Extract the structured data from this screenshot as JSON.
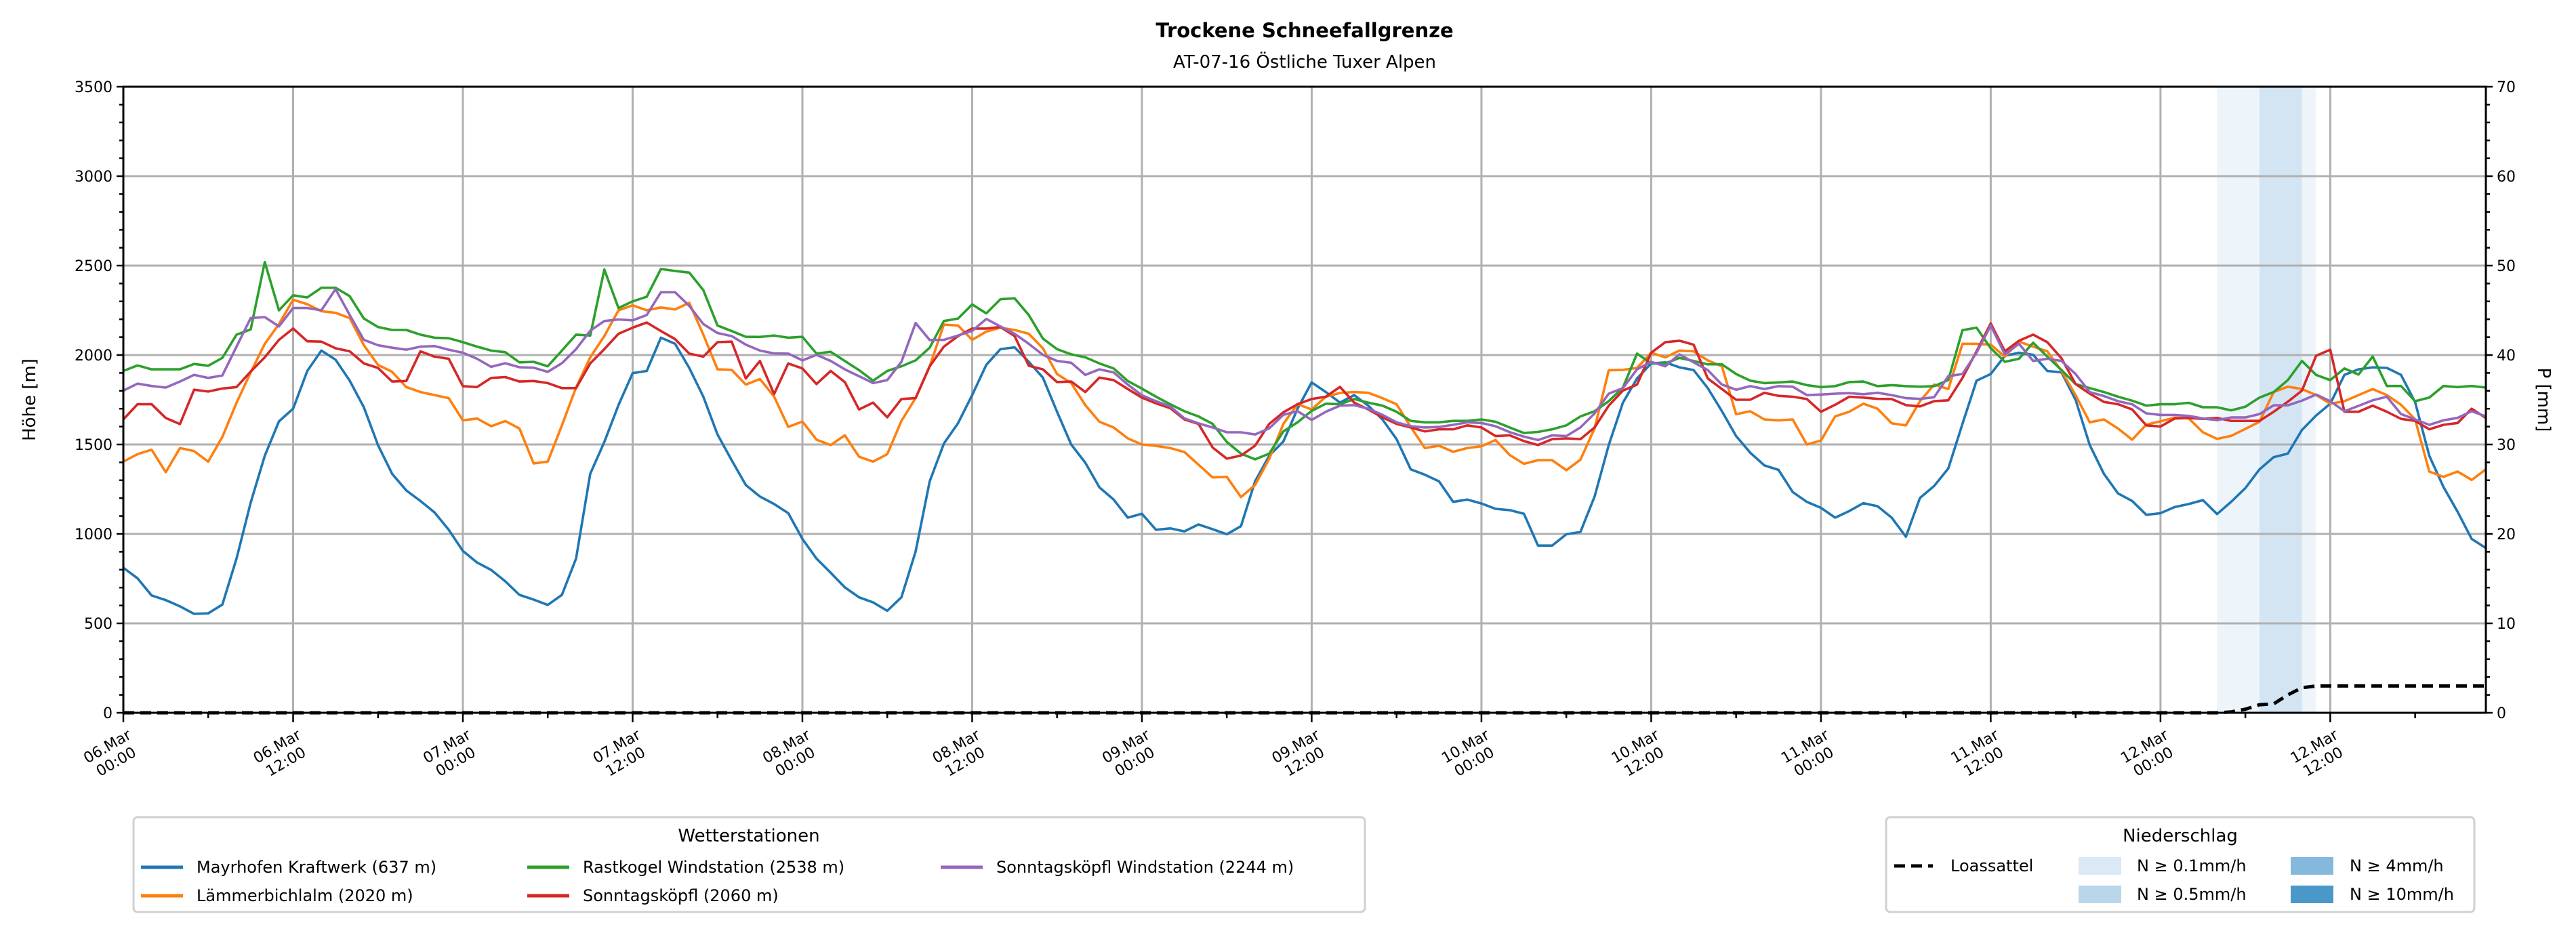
{
  "chart_data": {
    "type": "line",
    "title": "Trockene Schneefallgrenze",
    "subtitle": "AT-07-16 Östliche Tuxer Alpen",
    "ylabel": "Höhe [m]",
    "y2label": "P [mm]",
    "ylim": [
      0,
      3500
    ],
    "y2lim": [
      0,
      70
    ],
    "xlim_hours": [
      0,
      167
    ],
    "x_unit": "hours since 06.Mar 00:00 (hourly values)",
    "grid": true,
    "yticks": [
      0,
      500,
      1000,
      1500,
      2000,
      2500,
      3000,
      3500
    ],
    "y2ticks": [
      0,
      10,
      20,
      30,
      40,
      50,
      60,
      70
    ],
    "xticks": [
      {
        "h": 0,
        "l1": "06.Mar",
        "l2": "00:00"
      },
      {
        "h": 12,
        "l1": "06.Mar",
        "l2": "12:00"
      },
      {
        "h": 24,
        "l1": "07.Mar",
        "l2": "00:00"
      },
      {
        "h": 36,
        "l1": "07.Mar",
        "l2": "12:00"
      },
      {
        "h": 48,
        "l1": "08.Mar",
        "l2": "00:00"
      },
      {
        "h": 60,
        "l1": "08.Mar",
        "l2": "12:00"
      },
      {
        "h": 72,
        "l1": "09.Mar",
        "l2": "00:00"
      },
      {
        "h": 84,
        "l1": "09.Mar",
        "l2": "12:00"
      },
      {
        "h": 96,
        "l1": "10.Mar",
        "l2": "00:00"
      },
      {
        "h": 108,
        "l1": "10.Mar",
        "l2": "12:00"
      },
      {
        "h": 120,
        "l1": "11.Mar",
        "l2": "00:00"
      },
      {
        "h": 132,
        "l1": "11.Mar",
        "l2": "12:00"
      },
      {
        "h": 144,
        "l1": "12.Mar",
        "l2": "00:00"
      },
      {
        "h": 156,
        "l1": "12.Mar",
        "l2": "12:00"
      }
    ],
    "legend_stations_title": "Wetterstationen",
    "legend_stations_placement": "bottom-left",
    "legend_precip_title": "Niederschlag",
    "legend_precip_placement": "bottom-right",
    "series": [
      {
        "name": "Mayrhofen Kraftwerk (637 m)",
        "color": "#1f77b4",
        "values": [
          811,
          752,
          656,
          630,
          595,
          553,
          556,
          605,
          862,
          1175,
          1437,
          1629,
          1700,
          1911,
          2025,
          1974,
          1857,
          1708,
          1497,
          1336,
          1243,
          1184,
          1120,
          1023,
          905,
          840,
          799,
          735,
          659,
          633,
          603,
          659,
          862,
          1336,
          1514,
          1720,
          1899,
          1911,
          2097,
          2063,
          1928,
          1767,
          1556,
          1412,
          1273,
          1209,
          1167,
          1116,
          972,
          862,
          783,
          701,
          646,
          617,
          570,
          646,
          901,
          1294,
          1505,
          1619,
          1776,
          1945,
          2033,
          2043,
          1962,
          1874,
          1683,
          1500,
          1398,
          1260,
          1192,
          1091,
          1113,
          1023,
          1031,
          1014,
          1053,
          1026,
          998,
          1043,
          1294,
          1437,
          1517,
          1700,
          1847,
          1793,
          1734,
          1776,
          1717,
          1640,
          1530,
          1361,
          1331,
          1294,
          1179,
          1192,
          1170,
          1140,
          1133,
          1113,
          935,
          935,
          998,
          1011,
          1209,
          1497,
          1734,
          1869,
          1953,
          1959,
          1931,
          1916,
          1815,
          1686,
          1547,
          1454,
          1383,
          1358,
          1234,
          1179,
          1146,
          1091,
          1128,
          1172,
          1155,
          1091,
          984,
          1201,
          1268,
          1366,
          1615,
          1857,
          1894,
          1996,
          2013,
          2001,
          1911,
          1903,
          1750,
          1497,
          1336,
          1226,
          1184,
          1107,
          1116,
          1150,
          1167,
          1189,
          1111,
          1180,
          1256,
          1361,
          1429,
          1449,
          1581,
          1662,
          1728,
          1889,
          1920,
          1931,
          1928,
          1889,
          1737,
          1437,
          1263,
          1124,
          972,
          921
        ]
      },
      {
        "name": "Lämmerbichlalm (2020 m)",
        "color": "#ff7f0e",
        "values": [
          1404,
          1446,
          1471,
          1345,
          1480,
          1463,
          1404,
          1542,
          1733,
          1903,
          2063,
          2173,
          2309,
          2284,
          2245,
          2236,
          2207,
          2055,
          1945,
          1906,
          1821,
          1793,
          1776,
          1759,
          1635,
          1645,
          1602,
          1631,
          1589,
          1394,
          1404,
          1607,
          1818,
          1987,
          2106,
          2250,
          2278,
          2250,
          2266,
          2255,
          2292,
          2114,
          1920,
          1917,
          1835,
          1866,
          1768,
          1598,
          1628,
          1527,
          1497,
          1551,
          1432,
          1404,
          1446,
          1632,
          1759,
          1937,
          2170,
          2165,
          2085,
          2131,
          2153,
          2140,
          2119,
          2038,
          1894,
          1843,
          1720,
          1627,
          1595,
          1534,
          1500,
          1492,
          1480,
          1458,
          1387,
          1316,
          1319,
          1206,
          1273,
          1420,
          1615,
          1725,
          1696,
          1767,
          1788,
          1793,
          1789,
          1759,
          1725,
          1598,
          1480,
          1493,
          1459,
          1480,
          1490,
          1525,
          1441,
          1392,
          1412,
          1412,
          1356,
          1415,
          1590,
          1915,
          1917,
          1928,
          2013,
          1987,
          2025,
          2021,
          1970,
          1937,
          1669,
          1686,
          1640,
          1635,
          1640,
          1500,
          1522,
          1657,
          1683,
          1728,
          1700,
          1618,
          1607,
          1742,
          1835,
          1810,
          2063,
          2063,
          2058,
          1991,
          2075,
          2047,
          2021,
          1911,
          1776,
          1624,
          1640,
          1589,
          1527,
          1611,
          1630,
          1650,
          1646,
          1568,
          1531,
          1548,
          1587,
          1627,
          1793,
          1823,
          1810,
          1776,
          1728,
          1742,
          1776,
          1810,
          1776,
          1722,
          1640,
          1349,
          1319,
          1349,
          1302,
          1361
        ]
      },
      {
        "name": "Rastkogel Windstation (2538 m)",
        "color": "#2ca02c",
        "values": [
          1911,
          1942,
          1920,
          1920,
          1920,
          1950,
          1940,
          1984,
          2114,
          2143,
          2520,
          2250,
          2334,
          2322,
          2376,
          2376,
          2329,
          2204,
          2157,
          2140,
          2140,
          2114,
          2097,
          2094,
          2072,
          2047,
          2025,
          2016,
          1959,
          1962,
          1937,
          2025,
          2114,
          2109,
          2478,
          2263,
          2300,
          2326,
          2481,
          2470,
          2461,
          2363,
          2165,
          2134,
          2102,
          2101,
          2109,
          2097,
          2102,
          2008,
          2018,
          1967,
          1916,
          1857,
          1911,
          1937,
          1970,
          2041,
          2190,
          2204,
          2283,
          2233,
          2312,
          2317,
          2224,
          2092,
          2033,
          2004,
          1987,
          1953,
          1925,
          1855,
          1812,
          1767,
          1725,
          1686,
          1657,
          1615,
          1514,
          1449,
          1417,
          1449,
          1573,
          1624,
          1688,
          1728,
          1725,
          1754,
          1734,
          1717,
          1683,
          1632,
          1624,
          1624,
          1632,
          1632,
          1640,
          1627,
          1595,
          1564,
          1570,
          1585,
          1607,
          1657,
          1686,
          1742,
          1818,
          2008,
          1953,
          1953,
          1984,
          1967,
          1948,
          1948,
          1894,
          1857,
          1843,
          1847,
          1852,
          1832,
          1821,
          1826,
          1849,
          1852,
          1826,
          1832,
          1826,
          1823,
          1826,
          1860,
          2139,
          2153,
          2038,
          1962,
          1979,
          2069,
          1991,
          1916,
          1838,
          1815,
          1793,
          1767,
          1745,
          1717,
          1725,
          1725,
          1733,
          1708,
          1708,
          1691,
          1711,
          1762,
          1793,
          1860,
          1967,
          1889,
          1860,
          1925,
          1891,
          1992,
          1827,
          1827,
          1742,
          1762,
          1827,
          1821,
          1827,
          1818
        ]
      },
      {
        "name": "Sonntagsköpfl (2060 m)",
        "color": "#d62728",
        "values": [
          1640,
          1725,
          1725,
          1648,
          1614,
          1806,
          1796,
          1813,
          1821,
          1908,
          1987,
          2085,
          2148,
          2077,
          2075,
          2038,
          2021,
          1953,
          1928,
          1852,
          1855,
          2021,
          1991,
          1979,
          1826,
          1821,
          1872,
          1877,
          1852,
          1855,
          1843,
          1815,
          1815,
          1953,
          2033,
          2119,
          2153,
          2182,
          2134,
          2089,
          2008,
          1991,
          2072,
          2075,
          1869,
          1967,
          1782,
          1953,
          1925,
          1838,
          1911,
          1849,
          1696,
          1734,
          1652,
          1754,
          1759,
          1937,
          2047,
          2106,
          2148,
          2148,
          2157,
          2106,
          1940,
          1920,
          1849,
          1852,
          1793,
          1874,
          1860,
          1810,
          1762,
          1730,
          1703,
          1640,
          1615,
          1483,
          1421,
          1438,
          1493,
          1615,
          1680,
          1725,
          1754,
          1767,
          1822,
          1734,
          1696,
          1652,
          1615,
          1595,
          1573,
          1585,
          1585,
          1607,
          1595,
          1547,
          1551,
          1519,
          1497,
          1530,
          1534,
          1530,
          1595,
          1717,
          1801,
          1835,
          2013,
          2072,
          2080,
          2058,
          1869,
          1810,
          1750,
          1750,
          1789,
          1772,
          1767,
          1754,
          1683,
          1722,
          1767,
          1762,
          1755,
          1754,
          1720,
          1713,
          1742,
          1747,
          1872,
          2021,
          2177,
          2021,
          2080,
          2114,
          2072,
          1982,
          1838,
          1784,
          1738,
          1725,
          1696,
          1607,
          1600,
          1645,
          1648,
          1643,
          1648,
          1632,
          1632,
          1632,
          1683,
          1739,
          1801,
          1996,
          2030,
          1683,
          1683,
          1717,
          1683,
          1643,
          1632,
          1585,
          1610,
          1620,
          1700,
          1648
        ]
      },
      {
        "name": "Sonntagsköpfl Windstation (2244 m)",
        "color": "#9467bd",
        "values": [
          1801,
          1840,
          1827,
          1818,
          1852,
          1889,
          1872,
          1886,
          2047,
          2207,
          2212,
          2160,
          2263,
          2263,
          2250,
          2368,
          2224,
          2085,
          2055,
          2041,
          2030,
          2047,
          2050,
          2030,
          2013,
          1979,
          1934,
          1954,
          1932,
          1929,
          1906,
          1954,
          2033,
          2136,
          2190,
          2199,
          2194,
          2224,
          2351,
          2351,
          2275,
          2173,
          2123,
          2106,
          2058,
          2025,
          2009,
          2008,
          1970,
          2001,
          1967,
          1920,
          1882,
          1843,
          1860,
          1962,
          2179,
          2084,
          2085,
          2109,
          2135,
          2202,
          2160,
          2119,
          2063,
          2001,
          1967,
          1957,
          1889,
          1920,
          1903,
          1835,
          1775,
          1742,
          1713,
          1646,
          1618,
          1595,
          1568,
          1568,
          1556,
          1590,
          1666,
          1686,
          1637,
          1683,
          1717,
          1720,
          1700,
          1666,
          1624,
          1602,
          1595,
          1598,
          1610,
          1624,
          1620,
          1602,
          1569,
          1544,
          1525,
          1551,
          1547,
          1595,
          1674,
          1784,
          1815,
          1920,
          1962,
          1937,
          2004,
          1959,
          1916,
          1835,
          1806,
          1826,
          1810,
          1826,
          1823,
          1776,
          1779,
          1784,
          1787,
          1781,
          1789,
          1776,
          1759,
          1755,
          1764,
          1882,
          1894,
          2013,
          2165,
          2004,
          2063,
          1967,
          1979,
          1967,
          1894,
          1793,
          1771,
          1742,
          1725,
          1674,
          1665,
          1665,
          1660,
          1645,
          1636,
          1651,
          1651,
          1670,
          1719,
          1719,
          1745,
          1779,
          1742,
          1686,
          1716,
          1747,
          1767,
          1670,
          1640,
          1610,
          1635,
          1649,
          1686,
          1657
        ]
      }
    ],
    "precip_line": {
      "name": "Loassattel",
      "color": "#000000",
      "axis": "right",
      "points_h_mm": [
        [
          0,
          0
        ],
        [
          148,
          0
        ],
        [
          149,
          0.1
        ],
        [
          150,
          0.4
        ],
        [
          151,
          0.9
        ],
        [
          152,
          1.0
        ],
        [
          153,
          2.0
        ],
        [
          154,
          2.8
        ],
        [
          155,
          3.0
        ],
        [
          167,
          3.0
        ]
      ]
    },
    "precip_classes": [
      {
        "label": "N ≥ 0.1mm/h",
        "color": "#dbe9f6"
      },
      {
        "label": "N ≥ 0.5mm/h",
        "color": "#b9d6ea"
      },
      {
        "label": "N ≥ 4mm/h",
        "color": "#84b8dc"
      },
      {
        "label": "N ≥ 10mm/h",
        "color": "#4a98c9"
      }
    ],
    "precip_bands": [
      {
        "from_h": 148,
        "to_h": 155,
        "class_index": 0
      },
      {
        "from_h": 151,
        "to_h": 154,
        "class_index": 1
      }
    ]
  }
}
